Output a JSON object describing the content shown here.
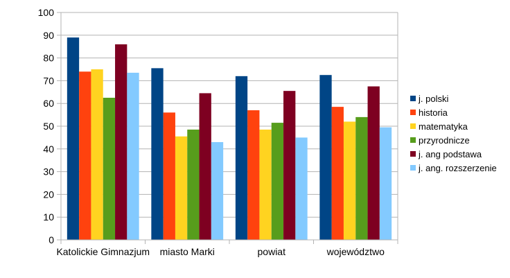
{
  "chart_data": {
    "type": "bar",
    "categories": [
      "Katolickie Gimnazjum",
      "miasto Marki",
      "powiat",
      "województwo"
    ],
    "series": [
      {
        "name": "j. polski",
        "color": "#004586",
        "values": [
          89,
          75.5,
          72,
          72.5
        ]
      },
      {
        "name": "historia",
        "color": "#ff420e",
        "values": [
          74,
          56,
          57,
          58.5
        ]
      },
      {
        "name": "matematyka",
        "color": "#ffd320",
        "values": [
          75,
          45.5,
          48.5,
          52
        ]
      },
      {
        "name": "przyrodnicze",
        "color": "#579d1c",
        "values": [
          62.5,
          48.5,
          51.5,
          54
        ]
      },
      {
        "name": "j. ang podstawa",
        "color": "#7e0021",
        "values": [
          86,
          64.5,
          65.5,
          67.5
        ]
      },
      {
        "name": "j. ang. rozszerzenie",
        "color": "#83caff",
        "values": [
          73.5,
          43,
          45,
          49.5
        ]
      }
    ],
    "ylim": [
      0,
      100
    ],
    "yticks": [
      "0",
      "10",
      "20",
      "30",
      "40",
      "50",
      "60",
      "70",
      "80",
      "90",
      "100"
    ],
    "grid": true,
    "legend": "right"
  }
}
